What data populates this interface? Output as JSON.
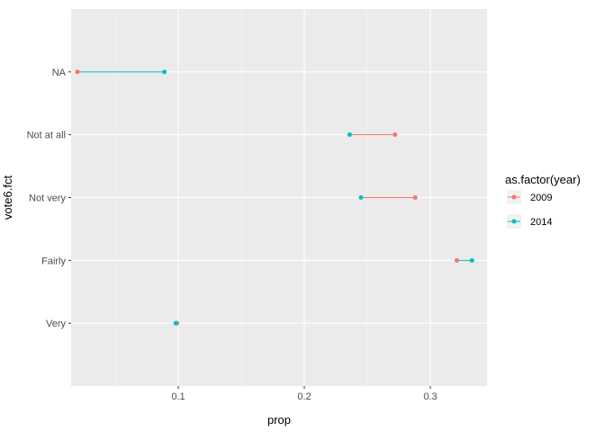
{
  "chart_data": {
    "type": "dumbbell",
    "xlabel": "prop",
    "ylabel": "vote6.fct",
    "xlim": [
      0.015,
      0.345
    ],
    "x_ticks": [
      {
        "value": 0.1,
        "label": "0.1"
      },
      {
        "value": 0.2,
        "label": "0.2"
      },
      {
        "value": 0.3,
        "label": "0.3"
      }
    ],
    "categories": [
      "Very",
      "Fairly",
      "Not very",
      "Not at all",
      "NA"
    ],
    "grid": true,
    "legend": {
      "title": "as.factor(year)",
      "placement": "right"
    },
    "series": [
      {
        "name": "2009",
        "color": "#F8766D",
        "values": [
          0.099,
          0.321,
          0.288,
          0.272,
          0.02
        ]
      },
      {
        "name": "2014",
        "color": "#00BFC4",
        "values": [
          0.098,
          0.333,
          0.245,
          0.236,
          0.089
        ]
      }
    ]
  }
}
